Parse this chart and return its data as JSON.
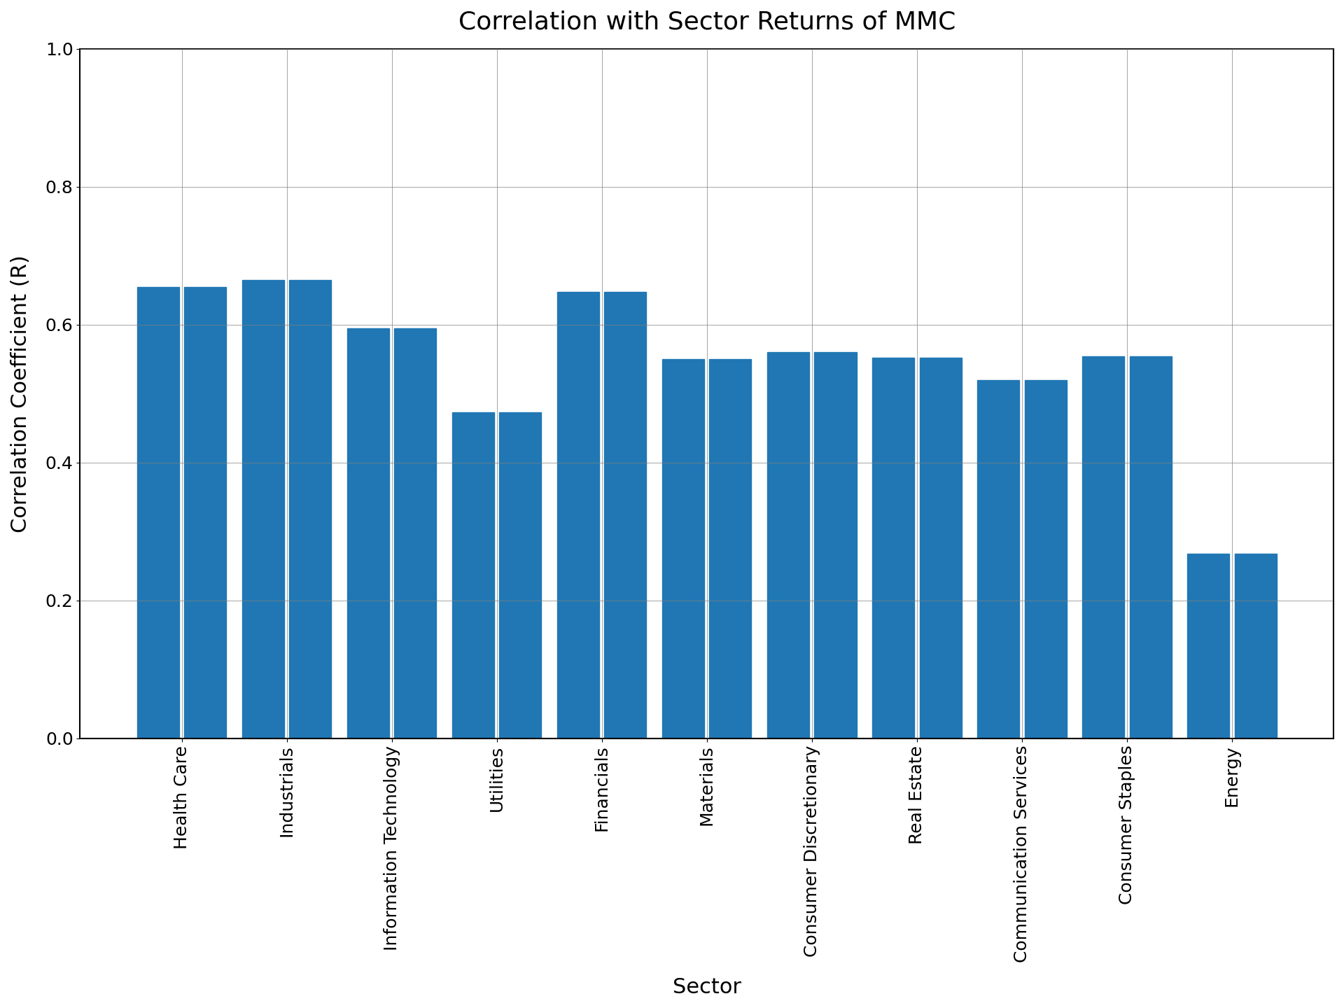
{
  "title": "Correlation with Sector Returns of MMC",
  "xlabel": "Sector",
  "ylabel": "Correlation Coefficient (R)",
  "categories": [
    "Health Care",
    "Industrials",
    "Information Technology",
    "Utilities",
    "Financials",
    "Materials",
    "Consumer Discretionary",
    "Real Estate",
    "Communication Services",
    "Consumer Staples",
    "Energy"
  ],
  "values": [
    0.655,
    0.665,
    0.595,
    0.473,
    0.648,
    0.55,
    0.56,
    0.552,
    0.52,
    0.554,
    0.268
  ],
  "bar_color": "#2077b4",
  "ylim": [
    0.0,
    1.0
  ],
  "yticks": [
    0.0,
    0.2,
    0.4,
    0.6,
    0.8,
    1.0
  ],
  "title_fontsize": 26,
  "axis_label_fontsize": 22,
  "tick_fontsize": 18,
  "background_color": "#ffffff",
  "grid": true,
  "bar_width": 0.4,
  "bar_gap": 0.05
}
